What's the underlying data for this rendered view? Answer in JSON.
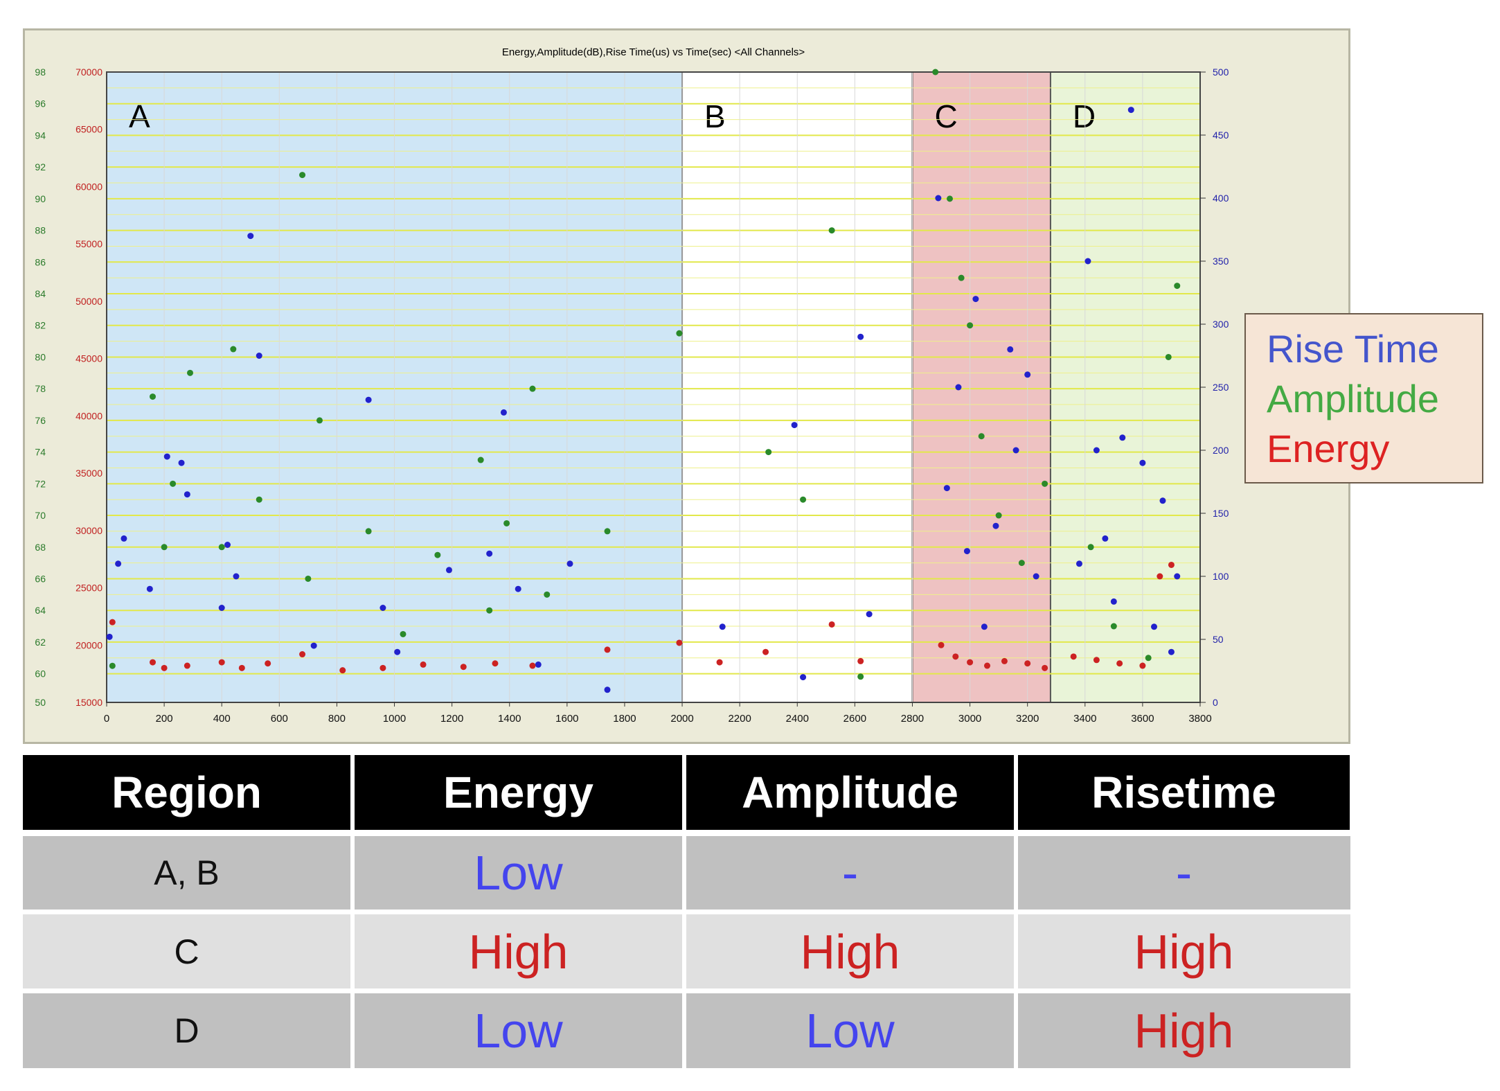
{
  "chart_data": {
    "type": "scatter",
    "title": "Energy,Amplitude(dB),Rise Time(us) vs Time(sec) <All Channels>",
    "xlabel": "",
    "ylabel": "",
    "xlim": [
      0,
      3800
    ],
    "x_ticks": [
      "0",
      "200",
      "400",
      "600",
      "800",
      "1000",
      "1200",
      "1400",
      "1600",
      "1800",
      "2000",
      "2200",
      "2400",
      "2600",
      "2800",
      "3000",
      "3200",
      "3400",
      "3600",
      "3800"
    ],
    "y_left_energy_ticks": [
      "70000",
      "65000",
      "60000",
      "55000",
      "50000",
      "45000",
      "40000",
      "35000",
      "30000",
      "25000",
      "20000",
      "15000"
    ],
    "y_left_energy_range": [
      15000,
      70000
    ],
    "y_left_amplitude_ticks": [
      "98",
      "96",
      "94",
      "92",
      "90",
      "88",
      "86",
      "84",
      "82",
      "80",
      "78",
      "76",
      "74",
      "72",
      "70",
      "68",
      "66",
      "64",
      "62",
      "60",
      "50"
    ],
    "y_right_risetime_ticks": [
      "500",
      "450",
      "400",
      "350",
      "300",
      "250",
      "200",
      "150",
      "100",
      "50",
      "0"
    ],
    "y_right_risetime_range": [
      0,
      500
    ],
    "grid": true,
    "regions": [
      {
        "label": "A",
        "x_start": 0,
        "x_end": 2000,
        "color": "#cfe6f6"
      },
      {
        "label": "B",
        "x_start": 2000,
        "x_end": 2800,
        "color": "#ffffff"
      },
      {
        "label": "C",
        "x_start": 2800,
        "x_end": 3280,
        "color": "#eec2c2"
      },
      {
        "label": "D",
        "x_start": 3280,
        "x_end": 3800,
        "color": "#e9f4d8"
      }
    ],
    "series": [
      {
        "name": "Rise Time",
        "color": "#2222cc",
        "points": [
          [
            10,
            52
          ],
          [
            40,
            110
          ],
          [
            60,
            130
          ],
          [
            150,
            90
          ],
          [
            210,
            195
          ],
          [
            260,
            190
          ],
          [
            280,
            165
          ],
          [
            400,
            75
          ],
          [
            420,
            125
          ],
          [
            450,
            100
          ],
          [
            500,
            370
          ],
          [
            530,
            275
          ],
          [
            720,
            45
          ],
          [
            910,
            240
          ],
          [
            960,
            75
          ],
          [
            1010,
            40
          ],
          [
            1190,
            105
          ],
          [
            1330,
            118
          ],
          [
            1380,
            230
          ],
          [
            1430,
            90
          ],
          [
            1500,
            30
          ],
          [
            1610,
            110
          ],
          [
            1740,
            10
          ],
          [
            2140,
            60
          ],
          [
            2390,
            220
          ],
          [
            2420,
            20
          ],
          [
            2620,
            290
          ],
          [
            2650,
            70
          ],
          [
            2890,
            400
          ],
          [
            2920,
            170
          ],
          [
            2960,
            250
          ],
          [
            2990,
            120
          ],
          [
            3020,
            320
          ],
          [
            3050,
            60
          ],
          [
            3090,
            140
          ],
          [
            3140,
            280
          ],
          [
            3160,
            200
          ],
          [
            3200,
            260
          ],
          [
            3230,
            100
          ],
          [
            3380,
            110
          ],
          [
            3410,
            350
          ],
          [
            3440,
            200
          ],
          [
            3470,
            130
          ],
          [
            3500,
            80
          ],
          [
            3530,
            210
          ],
          [
            3560,
            470
          ],
          [
            3600,
            190
          ],
          [
            3640,
            60
          ],
          [
            3670,
            160
          ],
          [
            3700,
            40
          ],
          [
            3720,
            100
          ]
        ]
      },
      {
        "name": "Amplitude",
        "color": "#2a8a2a",
        "points": [
          [
            20,
            60.5
          ],
          [
            160,
            77.5
          ],
          [
            200,
            68
          ],
          [
            230,
            72
          ],
          [
            290,
            79
          ],
          [
            400,
            68
          ],
          [
            440,
            80.5
          ],
          [
            530,
            71
          ],
          [
            680,
            91.5
          ],
          [
            700,
            66
          ],
          [
            740,
            76
          ],
          [
            910,
            69
          ],
          [
            1030,
            62.5
          ],
          [
            1150,
            67.5
          ],
          [
            1300,
            73.5
          ],
          [
            1330,
            64
          ],
          [
            1390,
            69.5
          ],
          [
            1480,
            78
          ],
          [
            1530,
            65
          ],
          [
            1740,
            69
          ],
          [
            1990,
            81.5
          ],
          [
            2300,
            74
          ],
          [
            2420,
            71
          ],
          [
            2520,
            88
          ],
          [
            2620,
            59
          ],
          [
            2880,
            98
          ],
          [
            2930,
            90
          ],
          [
            2970,
            85
          ],
          [
            3000,
            82
          ],
          [
            3040,
            75
          ],
          [
            3100,
            70
          ],
          [
            3180,
            67
          ],
          [
            3260,
            72
          ],
          [
            3420,
            68
          ],
          [
            3500,
            63
          ],
          [
            3620,
            61
          ],
          [
            3690,
            80
          ],
          [
            3720,
            84.5
          ]
        ]
      },
      {
        "name": "Energy",
        "color": "#cc2222",
        "points": [
          [
            20,
            22000
          ],
          [
            160,
            18500
          ],
          [
            200,
            18000
          ],
          [
            280,
            18200
          ],
          [
            400,
            18500
          ],
          [
            470,
            18000
          ],
          [
            560,
            18400
          ],
          [
            680,
            19200
          ],
          [
            820,
            17800
          ],
          [
            960,
            18000
          ],
          [
            1100,
            18300
          ],
          [
            1240,
            18100
          ],
          [
            1350,
            18400
          ],
          [
            1480,
            18200
          ],
          [
            1740,
            19600
          ],
          [
            1990,
            20200
          ],
          [
            2130,
            18500
          ],
          [
            2290,
            19400
          ],
          [
            2520,
            21800
          ],
          [
            2620,
            18600
          ],
          [
            2900,
            20000
          ],
          [
            2950,
            19000
          ],
          [
            3000,
            18500
          ],
          [
            3060,
            18200
          ],
          [
            3120,
            18600
          ],
          [
            3200,
            18400
          ],
          [
            3260,
            18000
          ],
          [
            3360,
            19000
          ],
          [
            3440,
            18700
          ],
          [
            3520,
            18400
          ],
          [
            3600,
            18200
          ],
          [
            3660,
            26000
          ],
          [
            3700,
            27000
          ]
        ]
      }
    ],
    "legend": [
      "Rise Time",
      "Amplitude",
      "Energy"
    ],
    "legend_position": "right"
  },
  "colors": {
    "rise_time": "#4455cc",
    "amplitude": "#44aa44",
    "energy": "#dd2222",
    "low": "#4444ee",
    "high": "#cc2222",
    "dash": "#4444ee"
  },
  "table": {
    "headers": [
      "Region",
      "Energy",
      "Amplitude",
      "Risetime"
    ],
    "rows": [
      {
        "region": "A, B",
        "energy": "Low",
        "amplitude": "-",
        "risetime": "-"
      },
      {
        "region": "C",
        "energy": "High",
        "amplitude": "High",
        "risetime": "High"
      },
      {
        "region": "D",
        "energy": "Low",
        "amplitude": "Low",
        "risetime": "High"
      }
    ]
  }
}
